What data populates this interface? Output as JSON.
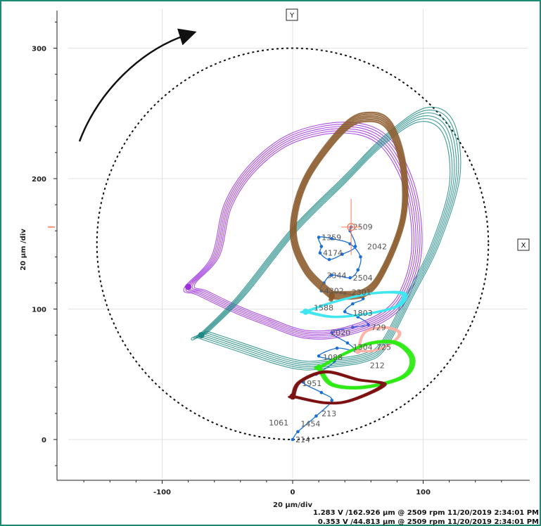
{
  "chart_data": {
    "type": "line",
    "subtype": "orbit-plot",
    "title": "",
    "xlabel": "20 µm/div",
    "ylabel": "20 µm /div",
    "xlim": [
      -180,
      180
    ],
    "ylim": [
      -30,
      330
    ],
    "x_ticks": [
      -100,
      0,
      100
    ],
    "y_ticks": [
      0,
      100,
      200,
      300
    ],
    "grid": true,
    "probe_labels": {
      "y": "Y",
      "x": "X"
    },
    "rotation_arrow": "clockwise",
    "clearance_circle": {
      "center": [
        0,
        150
      ],
      "radius": 150
    },
    "rpm_labels": [
      {
        "text": "214",
        "x": 0,
        "y": 0
      },
      {
        "text": "1061",
        "x": -1,
        "y": 13
      },
      {
        "text": "1454",
        "x": 4,
        "y": 12
      },
      {
        "text": "213",
        "x": 20,
        "y": 20
      },
      {
        "text": "1951",
        "x": 5,
        "y": 43
      },
      {
        "text": "1088",
        "x": 21,
        "y": 63
      },
      {
        "text": "212",
        "x": 57,
        "y": 57
      },
      {
        "text": "1304",
        "x": 44,
        "y": 71
      },
      {
        "text": "725",
        "x": 62,
        "y": 71
      },
      {
        "text": "2020",
        "x": 27,
        "y": 82
      },
      {
        "text": "729",
        "x": 58,
        "y": 86
      },
      {
        "text": "1588",
        "x": 14,
        "y": 101
      },
      {
        "text": "1803",
        "x": 44,
        "y": 97
      },
      {
        "text": "4302",
        "x": 22,
        "y": 114
      },
      {
        "text": "2301",
        "x": 43,
        "y": 113
      },
      {
        "text": "3344",
        "x": 24,
        "y": 126
      },
      {
        "text": "2504",
        "x": 44,
        "y": 124
      },
      {
        "text": "4174",
        "x": 21,
        "y": 143
      },
      {
        "text": "1359",
        "x": 20,
        "y": 155
      },
      {
        "text": "2042",
        "x": 55,
        "y": 148
      },
      {
        "text": "2509",
        "x": 44,
        "y": 163
      }
    ],
    "cursor": {
      "x": 44.8,
      "y": 162.9
    },
    "series": [
      {
        "color": "#1a6fd6",
        "values": [
          [
            0,
            0
          ],
          [
            4,
            6
          ],
          [
            18,
            18
          ],
          [
            30,
            30
          ],
          [
            22,
            36
          ],
          [
            8,
            44
          ],
          [
            18,
            50
          ],
          [
            32,
            60
          ],
          [
            20,
            64
          ],
          [
            34,
            70
          ],
          [
            48,
            68
          ],
          [
            42,
            74
          ],
          [
            30,
            82
          ],
          [
            46,
            86
          ],
          [
            58,
            88
          ],
          [
            50,
            94
          ],
          [
            40,
            98
          ],
          [
            46,
            104
          ],
          [
            54,
            108
          ],
          [
            40,
            112
          ],
          [
            22,
            114
          ],
          [
            24,
            120
          ],
          [
            30,
            126
          ],
          [
            44,
            124
          ],
          [
            50,
            130
          ],
          [
            52,
            140
          ],
          [
            44,
            150
          ],
          [
            30,
            154
          ],
          [
            20,
            155
          ],
          [
            22,
            148
          ],
          [
            21,
            143
          ],
          [
            28,
            138
          ],
          [
            38,
            142
          ],
          [
            48,
            148
          ],
          [
            44,
            160
          ],
          [
            44.8,
            162.9
          ]
        ]
      },
      {
        "color": "#9b30d9",
        "values": [
          [
            -80,
            117
          ],
          [
            -60,
            140
          ],
          [
            -50,
            180
          ],
          [
            -30,
            210
          ],
          [
            0,
            232
          ],
          [
            40,
            240
          ],
          [
            70,
            230
          ],
          [
            90,
            195
          ],
          [
            96,
            150
          ],
          [
            88,
            115
          ],
          [
            72,
            95
          ],
          [
            40,
            82
          ],
          [
            10,
            80
          ],
          [
            -20,
            90
          ],
          [
            -45,
            100
          ],
          [
            -70,
            112
          ]
        ]
      },
      {
        "color": "#1e8a86",
        "values": [
          [
            -70,
            80
          ],
          [
            -40,
            110
          ],
          [
            0,
            160
          ],
          [
            40,
            200
          ],
          [
            70,
            230
          ],
          [
            100,
            250
          ],
          [
            120,
            240
          ],
          [
            125,
            200
          ],
          [
            110,
            150
          ],
          [
            90,
            110
          ],
          [
            70,
            72
          ],
          [
            55,
            62
          ],
          [
            30,
            58
          ],
          [
            10,
            56
          ],
          [
            -10,
            60
          ],
          [
            -40,
            70
          ],
          [
            -70,
            80
          ]
        ]
      },
      {
        "color": "#8b5a2b",
        "values": [
          [
            30,
            110
          ],
          [
            10,
            130
          ],
          [
            0,
            160
          ],
          [
            10,
            200
          ],
          [
            40,
            240
          ],
          [
            60,
            248
          ],
          [
            75,
            240
          ],
          [
            85,
            210
          ],
          [
            85,
            170
          ],
          [
            70,
            130
          ],
          [
            55,
            112
          ],
          [
            30,
            110
          ]
        ]
      },
      {
        "color": "#3fe6f0",
        "values": [
          [
            10,
            98
          ],
          [
            30,
            105
          ],
          [
            60,
            112
          ],
          [
            85,
            112
          ],
          [
            80,
            102
          ],
          [
            55,
            96
          ],
          [
            30,
            94
          ],
          [
            10,
            98
          ]
        ]
      },
      {
        "color": "#ffb3a7",
        "values": [
          [
            50,
            68
          ],
          [
            55,
            82
          ],
          [
            70,
            86
          ],
          [
            82,
            82
          ],
          [
            76,
            74
          ],
          [
            62,
            68
          ],
          [
            50,
            68
          ]
        ]
      },
      {
        "color": "#2eea14",
        "values": [
          [
            20,
            55
          ],
          [
            30,
            42
          ],
          [
            55,
            40
          ],
          [
            85,
            48
          ],
          [
            92,
            62
          ],
          [
            80,
            74
          ],
          [
            60,
            74
          ],
          [
            40,
            66
          ],
          [
            20,
            55
          ]
        ]
      },
      {
        "color": "#7d1212",
        "values": [
          [
            0,
            33
          ],
          [
            5,
            44
          ],
          [
            25,
            52
          ],
          [
            50,
            46
          ],
          [
            70,
            42
          ],
          [
            45,
            30
          ],
          [
            25,
            28
          ],
          [
            0,
            33
          ]
        ]
      }
    ],
    "status_readout": [
      "1.283 V /162.926 µm @ 2509 rpm 11/20/2019 2:34:01 PM",
      "0.353 V /44.813 µm @ 2509 rpm 11/20/2019 2:34:01 PM"
    ]
  }
}
